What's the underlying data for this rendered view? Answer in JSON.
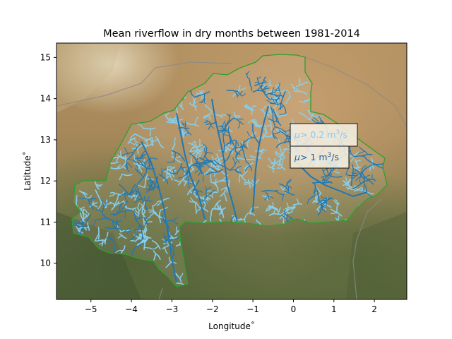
{
  "chart_data": {
    "type": "map",
    "title": "Mean riverflow in dry months between 1981-2014",
    "xlabel": "Longitude˚",
    "ylabel": "Latitude˚",
    "xlim": [
      -5.85,
      2.8
    ],
    "ylim": [
      9.12,
      15.35
    ],
    "x_ticks": [
      "−5",
      "−4",
      "−3",
      "−2",
      "−1",
      "0",
      "1",
      "2"
    ],
    "x_tick_values": [
      -5,
      -4,
      -3,
      -2,
      -1,
      0,
      1,
      2
    ],
    "y_ticks": [
      "10",
      "11",
      "12",
      "13",
      "14",
      "15"
    ],
    "y_tick_values": [
      10,
      11,
      12,
      13,
      14,
      15
    ],
    "legend": [
      {
        "mu": "μ",
        "text": "> 0.2 m",
        "sup": "3",
        "unit": "/s",
        "color": "#8cc8ee"
      },
      {
        "mu": "μ",
        "text": "> 1 m",
        "sup": "3",
        "unit": "/s",
        "color": "#1f77b4"
      }
    ],
    "colors": {
      "border": "#2ca02c",
      "river_small": "#87ceeb",
      "river_large": "#1f77b4",
      "neighbor_border": "#8a8a8a"
    },
    "background": "satellite imagery"
  }
}
